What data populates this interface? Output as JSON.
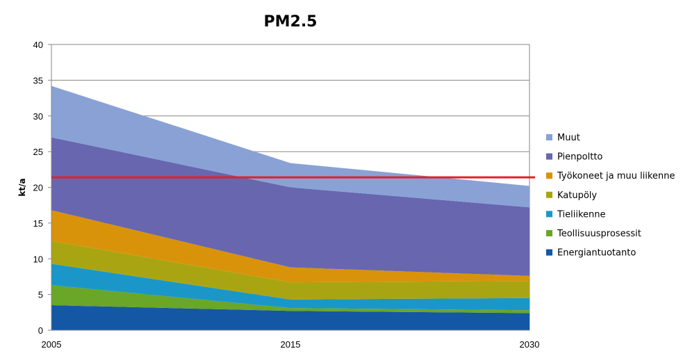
{
  "chart_data": {
    "type": "area",
    "stacked": true,
    "title": "PM2.5",
    "xlabel": "",
    "ylabel": "kt/a",
    "categories": [
      "2005",
      "2015",
      "2030"
    ],
    "ylim": [
      0,
      40
    ],
    "yticks": [
      0,
      5,
      10,
      15,
      20,
      25,
      30,
      35,
      40
    ],
    "grid": true,
    "legend_position": "right",
    "series": [
      {
        "name": "Energiantuotanto",
        "color": "#1457A4",
        "values": [
          3.5,
          2.7,
          2.4
        ]
      },
      {
        "name": "Teollisuusprosessit",
        "color": "#6AA628",
        "values": [
          2.8,
          0.4,
          0.4
        ]
      },
      {
        "name": "Tieliikenne",
        "color": "#1A97C8",
        "values": [
          3.0,
          1.2,
          1.7
        ]
      },
      {
        "name": "Katupöly",
        "color": "#A9A512",
        "values": [
          3.2,
          2.4,
          2.4
        ]
      },
      {
        "name": "Työkoneet ja muu liikenne",
        "color": "#D9930A",
        "values": [
          4.3,
          2.1,
          0.7
        ]
      },
      {
        "name": "Pienpoltto",
        "color": "#6766AF",
        "values": [
          10.2,
          11.2,
          9.6
        ]
      },
      {
        "name": "Muut",
        "color": "#8AA1D5",
        "values": [
          7.2,
          3.4,
          3.0
        ]
      }
    ],
    "reference_line": {
      "y": 21.4,
      "color": "#E0212B"
    }
  }
}
